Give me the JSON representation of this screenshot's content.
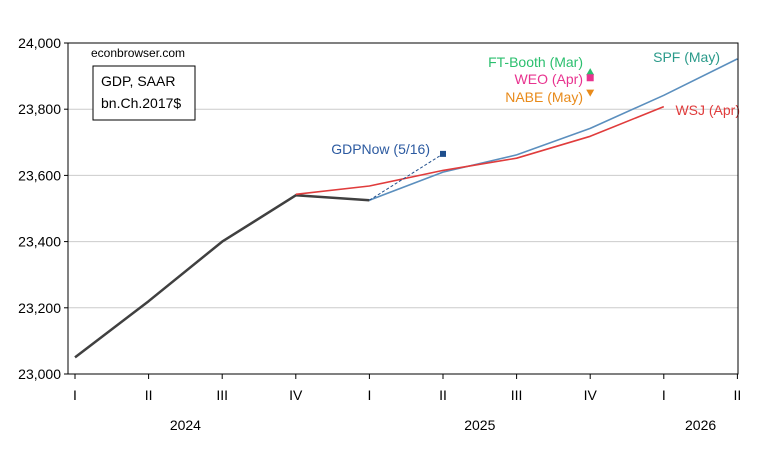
{
  "chart_data": {
    "type": "line",
    "watermark": "econbrowser.com",
    "legend_box": {
      "line1": "GDP, SAAR",
      "line2": "bn.Ch.2017$"
    },
    "ylim": [
      23000,
      24000
    ],
    "yticks": [
      23000,
      23200,
      23400,
      23600,
      23800,
      24000
    ],
    "ytick_labels": [
      "23,000",
      "23,200",
      "23,400",
      "23,600",
      "23,800",
      "24,000"
    ],
    "quarter_labels": [
      "I",
      "II",
      "III",
      "IV",
      "I",
      "II",
      "III",
      "IV",
      "I",
      "II"
    ],
    "year_labels": [
      {
        "label": "2024",
        "q": 1.5
      },
      {
        "label": "2025",
        "q": 5.5
      },
      {
        "label": "2026",
        "q": 8.5
      }
    ],
    "colors": {
      "actual": "#404040",
      "spf": "#5b8fbe",
      "wsj": "#e03c3c",
      "gdpnow": "#1f4e8c",
      "ft": "#2bbf6e",
      "weo": "#e8338f",
      "nabe": "#e88a1a",
      "spf_label": "#2a9a8a",
      "gdpnow_label": "#2c5aa0",
      "grid": "#cccccc"
    },
    "series": [
      {
        "key": "actual",
        "values": [
          [
            0,
            23050
          ],
          [
            1,
            23220
          ],
          [
            2,
            23400
          ],
          [
            3,
            23540
          ],
          [
            4,
            23525
          ]
        ]
      },
      {
        "key": "spf",
        "name": "SPF (May)",
        "values": [
          [
            4,
            23525
          ],
          [
            5,
            23610
          ],
          [
            6,
            23662
          ],
          [
            7,
            23742
          ],
          [
            8,
            23842
          ],
          [
            9,
            23952
          ]
        ]
      },
      {
        "key": "wsj",
        "name": "WSJ (Apr)",
        "values": [
          [
            3,
            23543
          ],
          [
            4,
            23568
          ],
          [
            5,
            23615
          ],
          [
            6,
            23652
          ],
          [
            7,
            23718
          ],
          [
            8,
            23808
          ]
        ]
      },
      {
        "key": "gdpnow",
        "name": "GDPNow (5/16)",
        "values": [
          [
            4,
            23525
          ],
          [
            5,
            23665
          ]
        ]
      }
    ],
    "points": [
      {
        "key": "ft",
        "name": "FT-Booth (Mar)",
        "x": 7,
        "y": 23912,
        "marker": "triangle-up"
      },
      {
        "key": "weo",
        "name": "WEO (Apr)",
        "x": 7,
        "y": 23895,
        "marker": "square"
      },
      {
        "key": "nabe",
        "name": "NABE (May)",
        "x": 7,
        "y": 23850,
        "marker": "triangle-down"
      }
    ]
  }
}
